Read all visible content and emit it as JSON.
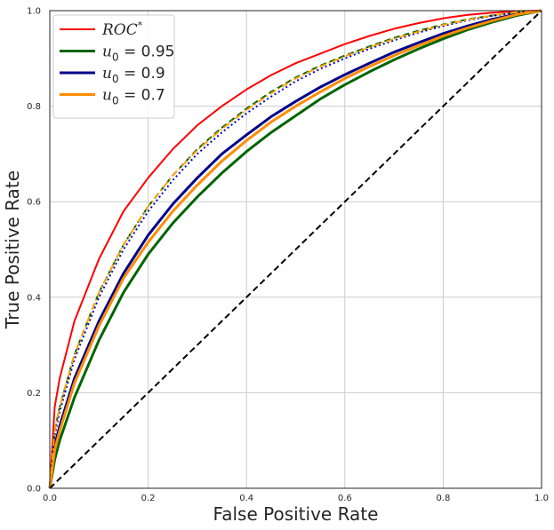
{
  "chart_data": {
    "type": "line",
    "xlabel": "False Positive Rate",
    "ylabel": "True Positive Rate",
    "xlim": [
      0.0,
      1.0
    ],
    "ylim": [
      0.0,
      1.0
    ],
    "x_ticks": [
      "0.0",
      "0.2",
      "0.4",
      "0.6",
      "0.8",
      "1.0"
    ],
    "y_ticks": [
      "0.0",
      "0.2",
      "0.4",
      "0.6",
      "0.8",
      "1.0"
    ],
    "grid": true,
    "legend_position": "top-left",
    "legend": [
      {
        "label_main": "ROC",
        "label_sup": "*",
        "color": "#ff0000"
      },
      {
        "label_main": "u",
        "label_sub": "0",
        "label_rest": " = 0.95",
        "color": "#006400"
      },
      {
        "label_main": "u",
        "label_sub": "0",
        "label_rest": " = 0.9",
        "color": "#00008b"
      },
      {
        "label_main": "u",
        "label_sub": "0",
        "label_rest": " = 0.7",
        "color": "#ff8c00"
      }
    ],
    "series": [
      {
        "id": "roc_star",
        "color": "#ff0000",
        "style": "solid",
        "width": 2,
        "x": [
          0,
          0.01,
          0.02,
          0.05,
          0.1,
          0.15,
          0.2,
          0.25,
          0.3,
          0.35,
          0.4,
          0.45,
          0.5,
          0.55,
          0.6,
          0.65,
          0.7,
          0.75,
          0.8,
          0.85,
          0.9,
          0.95,
          1.0
        ],
        "y": [
          0,
          0.17,
          0.23,
          0.35,
          0.48,
          0.58,
          0.65,
          0.71,
          0.76,
          0.8,
          0.835,
          0.865,
          0.89,
          0.91,
          0.93,
          0.947,
          0.962,
          0.974,
          0.984,
          0.991,
          0.996,
          0.999,
          1.0
        ]
      },
      {
        "id": "u095_solid",
        "color": "#006400",
        "style": "solid",
        "width": 3,
        "x": [
          0,
          0.01,
          0.02,
          0.05,
          0.1,
          0.15,
          0.2,
          0.25,
          0.3,
          0.35,
          0.4,
          0.45,
          0.5,
          0.55,
          0.6,
          0.65,
          0.7,
          0.75,
          0.8,
          0.85,
          0.9,
          0.95,
          1.0
        ],
        "y": [
          0,
          0.06,
          0.1,
          0.19,
          0.31,
          0.41,
          0.49,
          0.555,
          0.61,
          0.66,
          0.705,
          0.745,
          0.78,
          0.815,
          0.845,
          0.872,
          0.897,
          0.92,
          0.941,
          0.96,
          0.976,
          0.99,
          1.0
        ]
      },
      {
        "id": "u095_dashed",
        "color": "#006400",
        "style": "dashed",
        "width": 2,
        "x": [
          0,
          0.01,
          0.02,
          0.05,
          0.1,
          0.15,
          0.2,
          0.25,
          0.3,
          0.35,
          0.4,
          0.45,
          0.5,
          0.55,
          0.6,
          0.65,
          0.7,
          0.75,
          0.8,
          0.85,
          0.9,
          0.95,
          1.0
        ],
        "y": [
          0,
          0.12,
          0.17,
          0.28,
          0.41,
          0.51,
          0.59,
          0.655,
          0.71,
          0.755,
          0.795,
          0.83,
          0.86,
          0.885,
          0.906,
          0.925,
          0.943,
          0.958,
          0.971,
          0.982,
          0.99,
          0.997,
          1.0
        ]
      },
      {
        "id": "u09_solid",
        "color": "#00008b",
        "style": "solid",
        "width": 3,
        "x": [
          0,
          0.01,
          0.02,
          0.05,
          0.1,
          0.15,
          0.2,
          0.25,
          0.3,
          0.35,
          0.4,
          0.45,
          0.5,
          0.55,
          0.6,
          0.65,
          0.7,
          0.75,
          0.8,
          0.85,
          0.9,
          0.95,
          1.0
        ],
        "y": [
          0,
          0.09,
          0.13,
          0.23,
          0.35,
          0.45,
          0.53,
          0.595,
          0.65,
          0.7,
          0.74,
          0.778,
          0.81,
          0.84,
          0.866,
          0.89,
          0.913,
          0.933,
          0.952,
          0.968,
          0.982,
          0.993,
          1.0
        ]
      },
      {
        "id": "u09_dotted",
        "color": "#0000cd",
        "style": "dotted",
        "width": 2,
        "x": [
          0,
          0.01,
          0.02,
          0.05,
          0.1,
          0.15,
          0.2,
          0.25,
          0.3,
          0.35,
          0.4,
          0.45,
          0.5,
          0.55,
          0.6,
          0.65,
          0.7,
          0.75,
          0.8,
          0.85,
          0.9,
          0.95,
          1.0
        ],
        "y": [
          0,
          0.11,
          0.16,
          0.27,
          0.4,
          0.5,
          0.58,
          0.645,
          0.7,
          0.745,
          0.785,
          0.82,
          0.852,
          0.878,
          0.9,
          0.92,
          0.938,
          0.954,
          0.968,
          0.98,
          0.989,
          0.996,
          1.0
        ]
      },
      {
        "id": "u07_solid",
        "color": "#ff8c00",
        "style": "solid",
        "width": 3,
        "x": [
          0,
          0.01,
          0.02,
          0.05,
          0.1,
          0.15,
          0.2,
          0.25,
          0.3,
          0.35,
          0.4,
          0.45,
          0.5,
          0.55,
          0.6,
          0.65,
          0.7,
          0.75,
          0.8,
          0.85,
          0.9,
          0.95,
          1.0
        ],
        "y": [
          0,
          0.08,
          0.12,
          0.22,
          0.34,
          0.44,
          0.515,
          0.58,
          0.635,
          0.685,
          0.728,
          0.767,
          0.8,
          0.83,
          0.858,
          0.883,
          0.906,
          0.927,
          0.947,
          0.964,
          0.979,
          0.992,
          1.0
        ]
      },
      {
        "id": "u07_dashdot",
        "color": "#ffa500",
        "style": "dashdot",
        "width": 2,
        "x": [
          0,
          0.01,
          0.02,
          0.05,
          0.1,
          0.15,
          0.2,
          0.25,
          0.3,
          0.35,
          0.4,
          0.45,
          0.5,
          0.55,
          0.6,
          0.65,
          0.7,
          0.75,
          0.8,
          0.85,
          0.9,
          0.95,
          1.0
        ],
        "y": [
          0,
          0.12,
          0.17,
          0.28,
          0.41,
          0.51,
          0.59,
          0.655,
          0.708,
          0.752,
          0.792,
          0.827,
          0.858,
          0.883,
          0.904,
          0.923,
          0.941,
          0.956,
          0.97,
          0.981,
          0.99,
          0.997,
          1.0
        ]
      },
      {
        "id": "chance",
        "color": "#000000",
        "style": "dashed",
        "width": 2,
        "x": [
          0,
          1.0
        ],
        "y": [
          0,
          1.0
        ]
      }
    ]
  }
}
